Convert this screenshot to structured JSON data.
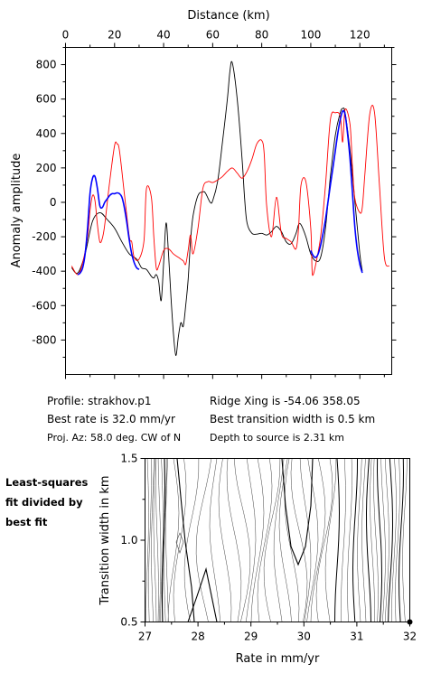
{
  "chart_data": [
    {
      "type": "line",
      "xlabel": "Distance (km)",
      "ylabel": "Anomaly amplitude",
      "xlim": [
        0,
        133
      ],
      "ylim": [
        -1000,
        900
      ],
      "xticks": [
        0,
        20,
        40,
        60,
        80,
        100,
        120
      ],
      "yticks": [
        -800,
        -600,
        -400,
        -200,
        0,
        200,
        400,
        600,
        800
      ],
      "grid": false,
      "series": [
        {
          "color": "#000000",
          "x": [
            2.5,
            5,
            8,
            11,
            14,
            17,
            20,
            23,
            26,
            29,
            31,
            33,
            35,
            36,
            37,
            38,
            39,
            40,
            41,
            42,
            43,
            44,
            45,
            46,
            47,
            48,
            49,
            50,
            51,
            52,
            54,
            56,
            57,
            59,
            60,
            62,
            64,
            66,
            67,
            68,
            70,
            72,
            73,
            74,
            76,
            78,
            80,
            82,
            84,
            86,
            88,
            90,
            92,
            94,
            95,
            96,
            98,
            100,
            102,
            104,
            106,
            108,
            110,
            112,
            113,
            114,
            116,
            118,
            120,
            121
          ],
          "y": [
            -380,
            -410,
            -300,
            -110,
            -60,
            -100,
            -150,
            -230,
            -300,
            -330,
            -380,
            -390,
            -430,
            -440,
            -420,
            -460,
            -570,
            -350,
            -120,
            -300,
            -550,
            -760,
            -890,
            -780,
            -700,
            -720,
            -600,
            -450,
            -220,
            -80,
            40,
            60,
            55,
            0,
            10,
            120,
            350,
            600,
            760,
            810,
            600,
            250,
            30,
            -120,
            -180,
            -185,
            -180,
            -190,
            -170,
            -140,
            -170,
            -230,
            -240,
            -180,
            -130,
            -130,
            -200,
            -300,
            -340,
            -320,
            -150,
            150,
            390,
            520,
            545,
            520,
            300,
            0,
            -300,
            -400
          ]
        },
        {
          "color": "#ff0000",
          "x": [
            2.5,
            5,
            7,
            9,
            10,
            11,
            12,
            13,
            14,
            15,
            16,
            18,
            20,
            21,
            22,
            24,
            26,
            27,
            28,
            30,
            32,
            33,
            35,
            36,
            37,
            38,
            40,
            42,
            44,
            46,
            48,
            49,
            50,
            51,
            52,
            54,
            56,
            58,
            60,
            62,
            64,
            66,
            68,
            70,
            72,
            74,
            76,
            78,
            80,
            81,
            82,
            84,
            86,
            88,
            90,
            92,
            94,
            95,
            96,
            98,
            100,
            100.5,
            101,
            102,
            104,
            106,
            108,
            110,
            112,
            113,
            114,
            116,
            117,
            118,
            120,
            121,
            122,
            124,
            126,
            128,
            130,
            132
          ],
          "y": [
            -370,
            -420,
            -350,
            -200,
            -50,
            40,
            10,
            -130,
            -230,
            -210,
            -130,
            120,
            330,
            340,
            300,
            50,
            -200,
            -230,
            -320,
            -330,
            -220,
            80,
            30,
            -200,
            -380,
            -370,
            -280,
            -270,
            -300,
            -320,
            -340,
            -360,
            -280,
            -190,
            -300,
            -150,
            80,
            120,
            115,
            130,
            150,
            180,
            200,
            170,
            140,
            180,
            250,
            340,
            360,
            280,
            -20,
            -200,
            30,
            -180,
            -210,
            -230,
            -270,
            -150,
            100,
            120,
            -150,
            -390,
            -420,
            -360,
            -200,
            100,
            480,
            520,
            500,
            350,
            540,
            450,
            200,
            20,
            -60,
            -30,
            150,
            510,
            520,
            100,
            -320,
            -370
          ]
        },
        {
          "color": "#0000ff",
          "x": [
            5,
            6,
            7,
            8,
            9,
            10,
            11,
            12,
            13,
            14,
            15,
            16,
            17,
            18,
            19,
            20,
            21,
            22,
            23,
            24,
            25,
            26,
            27,
            28,
            29,
            30
          ],
          "y": [
            -420,
            -410,
            -380,
            -300,
            -150,
            50,
            140,
            150,
            80,
            -20,
            -30,
            0,
            20,
            40,
            50,
            50,
            55,
            50,
            30,
            -30,
            -120,
            -220,
            -300,
            -350,
            -380,
            -390
          ]
        },
        {
          "color": "#0000ff",
          "x": [
            100,
            101,
            102,
            103,
            104,
            105,
            106,
            107,
            108,
            109,
            110,
            111,
            112,
            113,
            114,
            115,
            116,
            117,
            118,
            119,
            120,
            121
          ],
          "y": [
            -280,
            -310,
            -320,
            -300,
            -250,
            -180,
            -100,
            0,
            100,
            200,
            300,
            400,
            480,
            530,
            510,
            400,
            250,
            50,
            -150,
            -280,
            -360,
            -410
          ]
        }
      ]
    },
    {
      "type": "contour",
      "xlabel": "Rate in mm/yr",
      "ylabel": "Transition width in km",
      "xlim": [
        27,
        32
      ],
      "ylim": [
        0.5,
        1.5
      ],
      "xticks": [
        27,
        28,
        29,
        30,
        31,
        32
      ],
      "yticks": [
        0.5,
        1.0,
        1.5
      ],
      "best_fit_point": {
        "x": 32.0,
        "y": 0.5
      }
    }
  ],
  "info": {
    "profile": "Profile: strakhov.p1",
    "best_rate": "Best rate is 32.0 mm/yr",
    "proj_az": "Proj. Az: 58.0 deg. CW of N",
    "ridge_xing": "Ridge Xing is -54.06 358.05",
    "best_transition": "Best transition width is 0.5 km",
    "depth": "Depth to source is   2.31 km"
  },
  "side_note": {
    "line1": "Least-squares",
    "line2": "fit divided by",
    "line3": "best fit"
  }
}
